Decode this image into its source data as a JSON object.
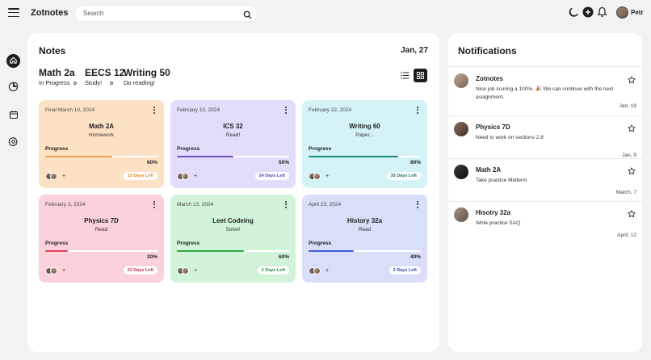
{
  "app": {
    "name": "Zotnotes"
  },
  "search": {
    "placeholder": "Search"
  },
  "user": {
    "name": "Petr"
  },
  "notes": {
    "title": "Notes",
    "date": "Jan, 27",
    "stats": [
      {
        "title": "Math 2a",
        "label": "In Progress"
      },
      {
        "title": "EECS 12",
        "label": "Study!"
      },
      {
        "title": "Writing 50",
        "label": "Do reading!"
      }
    ],
    "progress_label": "Progress",
    "cards": [
      {
        "date": "Final March 10, 2024",
        "title": "Math 2A",
        "subtitle": "Homework",
        "progress": 0.6,
        "percent": "60%",
        "days_left": "12 Days Left",
        "bg": "#fde1c4",
        "accent": "#f0a14a",
        "badge_color": "#e08a2a"
      },
      {
        "date": "February 10, 2024",
        "title": "ICS 32",
        "subtitle": "Read!",
        "progress": 0.5,
        "percent": "50%",
        "days_left": "24 Days Left",
        "bg": "#e3dcfa",
        "accent": "#6d55c8",
        "badge_color": "#5a46b6"
      },
      {
        "date": "February 22, 2024",
        "title": "Writing 60",
        "subtitle": "Paper...",
        "progress": 0.8,
        "percent": "80%",
        "days_left": "35 Days Left",
        "bg": "#d3f3f7",
        "accent": "#1b8a7e",
        "badge_color": "#1b7268"
      },
      {
        "date": "February 3, 2024",
        "title": "Physics 7D",
        "subtitle": "Read",
        "progress": 0.2,
        "percent": "20%",
        "days_left": "23 Days Left",
        "bg": "#fbd1dc",
        "accent": "#e0405e",
        "badge_color": "#c6304c"
      },
      {
        "date": "March 13, 2024",
        "title": "Leet Codeing",
        "subtitle": "Solve!",
        "progress": 0.6,
        "percent": "60%",
        "days_left": "2 Days Left",
        "bg": "#d1f3d7",
        "accent": "#2ea84a",
        "badge_color": "#23903d"
      },
      {
        "date": "April 23, 2024",
        "title": "History 32a",
        "subtitle": "Read",
        "progress": 0.4,
        "percent": "40%",
        "days_left": "2 Days Left",
        "bg": "#d9def9",
        "accent": "#3e5bd6",
        "badge_color": "#2f48b7"
      }
    ]
  },
  "notifications": {
    "title": "Notifications",
    "items": [
      {
        "name": "Zotnotes",
        "message": "Nice job scoring a 100%. 🎉 We can continue with the next assignment.",
        "time": "Jan, 19"
      },
      {
        "name": "Physics 7D",
        "message": "Need to work on sections 2.8",
        "time": "Jan, 9"
      },
      {
        "name": "Math 2A",
        "message": "Take practice Midterm",
        "time": "March, 7"
      },
      {
        "name": "Hisotry 32a",
        "message": "Write practice SAQ",
        "time": "April, 12"
      }
    ]
  }
}
